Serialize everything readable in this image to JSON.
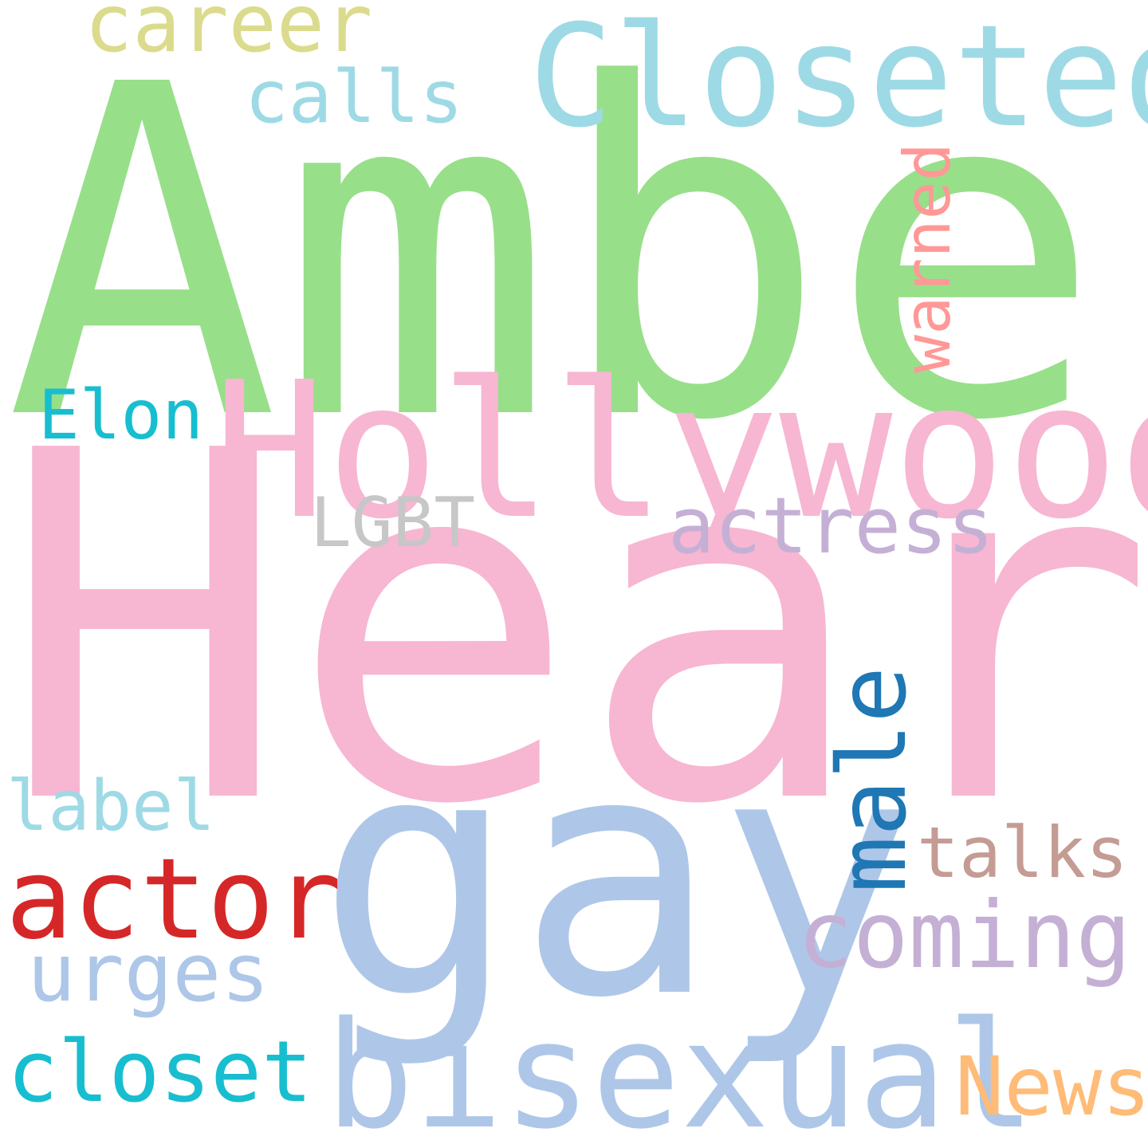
{
  "words": [
    {
      "text": "Amber",
      "color": "#98df8a",
      "orientation": "horizontal"
    },
    {
      "text": "Heard",
      "color": "#f7b6d2",
      "orientation": "horizontal"
    },
    {
      "text": "gay",
      "color": "#aec7e8",
      "orientation": "horizontal"
    },
    {
      "text": "Hollywood",
      "color": "#f7b6d2",
      "orientation": "horizontal"
    },
    {
      "text": "Closeted",
      "color": "#9edae5",
      "orientation": "horizontal"
    },
    {
      "text": "bisexual",
      "color": "#aec7e8",
      "orientation": "horizontal"
    },
    {
      "text": "actor",
      "color": "#d62728",
      "orientation": "horizontal"
    },
    {
      "text": "coming",
      "color": "#c5b0d5",
      "orientation": "horizontal"
    },
    {
      "text": "male",
      "color": "#1f77b4",
      "orientation": "vertical"
    },
    {
      "text": "closet",
      "color": "#17becf",
      "orientation": "horizontal"
    },
    {
      "text": "News",
      "color": "#ffbb78",
      "orientation": "horizontal"
    },
    {
      "text": "urges",
      "color": "#aec7e8",
      "orientation": "horizontal"
    },
    {
      "text": "career",
      "color": "#dbdb8d",
      "orientation": "horizontal"
    },
    {
      "text": "actress",
      "color": "#c5b0d5",
      "orientation": "horizontal"
    },
    {
      "text": "calls",
      "color": "#9edae5",
      "orientation": "horizontal"
    },
    {
      "text": "talks",
      "color": "#c49c94",
      "orientation": "horizontal"
    },
    {
      "text": "label",
      "color": "#9edae5",
      "orientation": "horizontal"
    },
    {
      "text": "Elon",
      "color": "#17becf",
      "orientation": "horizontal"
    },
    {
      "text": "LGBT",
      "color": "#c7c7c7",
      "orientation": "horizontal"
    },
    {
      "text": "warned",
      "color": "#ff9896",
      "orientation": "vertical"
    }
  ]
}
